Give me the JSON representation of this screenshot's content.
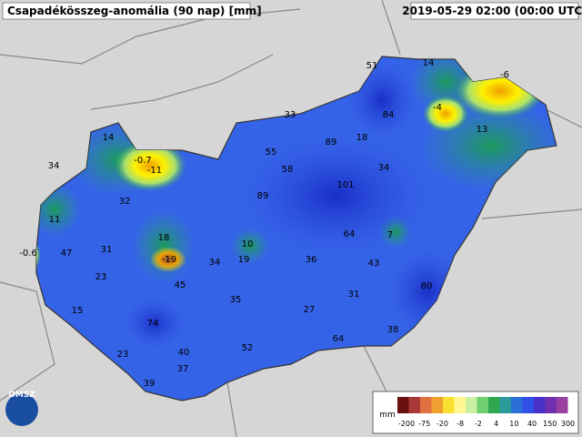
{
  "header": {
    "title": "Csapadékösszeg-anomália (90 nap) [mm]",
    "timestamp": "2019-05-29 02:00 (00:00 UTC)"
  },
  "logo": "OMSZ",
  "stations": [
    51,
    14,
    -6,
    33,
    84,
    -4,
    14,
    89,
    18,
    13,
    55,
    58,
    -0.7,
    -11,
    34,
    34,
    101,
    89,
    32,
    11,
    64,
    7,
    18,
    10,
    47,
    31,
    -0.6,
    -19,
    19,
    34,
    36,
    43,
    23,
    45,
    80,
    31,
    15,
    35,
    27,
    74,
    38,
    64,
    52,
    23,
    40,
    37,
    39
  ],
  "legend": {
    "unit": "mm",
    "labels": [
      -200,
      -75,
      -20,
      -8,
      -2,
      4,
      10,
      40,
      150,
      300
    ]
  }
}
